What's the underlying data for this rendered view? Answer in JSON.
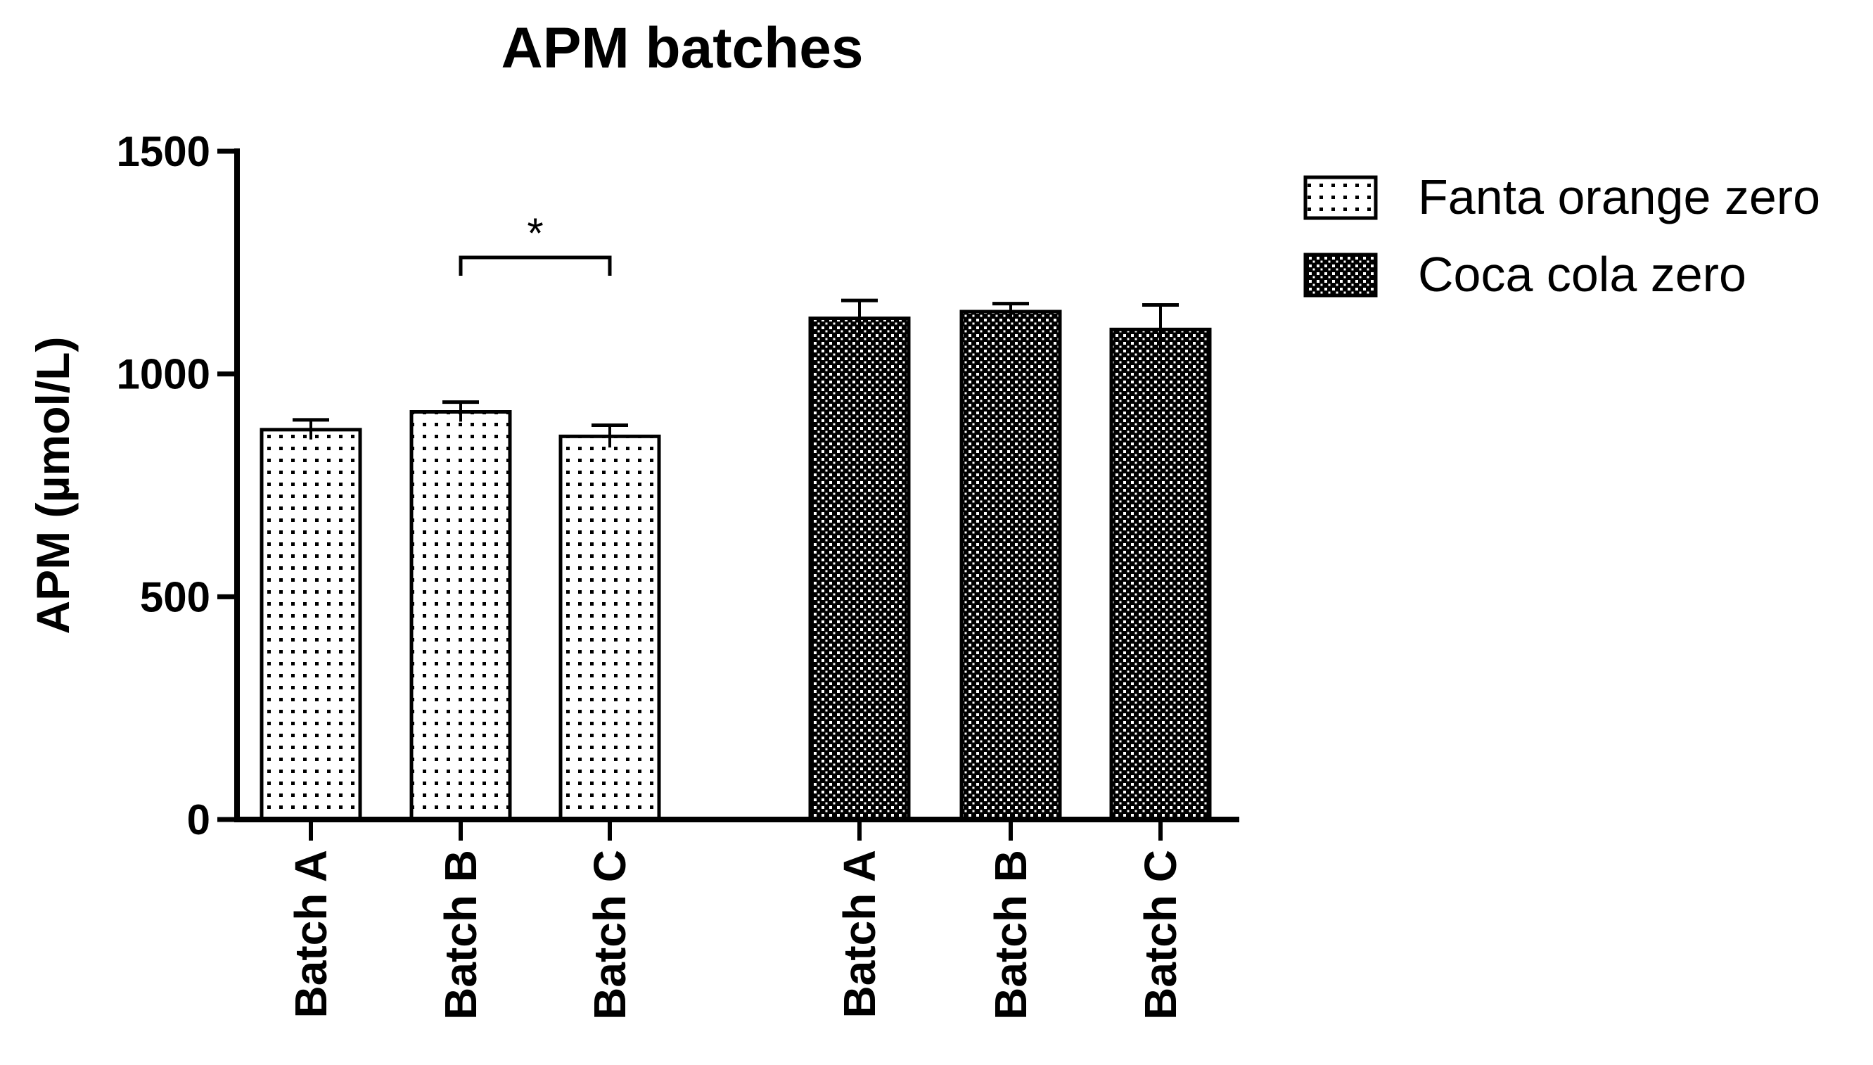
{
  "chart_data": {
    "type": "bar",
    "title": "APM batches",
    "xlabel": "",
    "ylabel": "APM (µmol/L)",
    "ylim": [
      0,
      1500
    ],
    "yticks": [
      0,
      500,
      1000,
      1500
    ],
    "grid": false,
    "legend_placement": "top-right",
    "series": [
      {
        "name": "Fanta orange zero",
        "pattern": "sparse-dots",
        "color": "#000000",
        "categories": [
          "Batch A",
          "Batch B",
          "Batch C"
        ],
        "values": [
          875,
          915,
          860
        ],
        "errors": [
          22,
          22,
          25
        ]
      },
      {
        "name": "Coca cola zero",
        "pattern": "dense-checker",
        "color": "#000000",
        "categories": [
          "Batch A",
          "Batch B",
          "Batch C"
        ],
        "values": [
          1125,
          1140,
          1100
        ],
        "errors": [
          40,
          18,
          55
        ]
      }
    ],
    "annotations": [
      {
        "text": "*",
        "between": [
          "Batch B",
          "Batch C"
        ],
        "series": "Fanta orange zero"
      }
    ]
  }
}
